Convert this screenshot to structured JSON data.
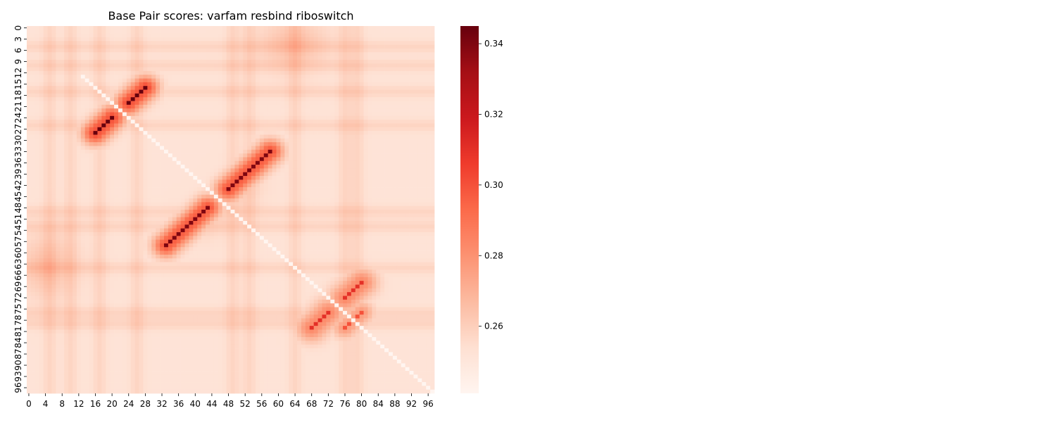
{
  "chart_data": {
    "type": "heatmap",
    "title": "Base Pair scores: varfam resbind riboswitch",
    "xlabel": "",
    "ylabel": "",
    "n": 98,
    "x_tick_labels": [
      "0",
      "4",
      "8",
      "12",
      "16",
      "20",
      "24",
      "28",
      "32",
      "36",
      "40",
      "44",
      "48",
      "52",
      "56",
      "60",
      "64",
      "68",
      "72",
      "76",
      "80",
      "84",
      "88",
      "92",
      "96"
    ],
    "y_tick_labels": [
      "0",
      "3",
      "6",
      "9",
      "12",
      "15",
      "18",
      "21",
      "24",
      "27",
      "30",
      "33",
      "36",
      "39",
      "42",
      "45",
      "48",
      "51",
      "54",
      "57",
      "60",
      "63",
      "66",
      "69",
      "72",
      "75",
      "78",
      "81",
      "84",
      "87",
      "90",
      "93",
      "96"
    ],
    "colormap": "Reds",
    "colormap_stops": [
      "#fff5f0",
      "#fee0d2",
      "#fcbba1",
      "#fc9272",
      "#fb6a4a",
      "#ef3b2c",
      "#cb181d",
      "#a50f15",
      "#67000d"
    ],
    "vmin": 0.241,
    "vmax": 0.345,
    "baseline_value": 0.252,
    "colorbar_ticks": [
      {
        "value": 0.26,
        "label": "0.26"
      },
      {
        "value": 0.28,
        "label": "0.28"
      },
      {
        "value": 0.3,
        "label": "0.30"
      },
      {
        "value": 0.32,
        "label": "0.32"
      },
      {
        "value": 0.34,
        "label": "0.34"
      }
    ],
    "diagonal": {
      "value": 0.241,
      "from": 13,
      "to": 97
    },
    "stems": [
      {
        "i_start": 16,
        "j_start": 28,
        "length": 5,
        "peak": 0.345,
        "spread": 2.2
      },
      {
        "i_start": 33,
        "j_start": 58,
        "length": 11,
        "peak": 0.34,
        "spread": 2.2
      },
      {
        "i_start": 68,
        "j_start": 80,
        "length": 5,
        "peak": 0.31,
        "spread": 2.6
      },
      {
        "i_start": 76,
        "j_start": 80,
        "length": 3,
        "peak": 0.3,
        "spread": 2.0
      }
    ],
    "band_patterns": [
      {
        "centers": [
          5,
          10,
          17,
          26,
          49,
          53,
          64,
          76,
          79
        ],
        "axis": "row",
        "value": 0.006,
        "width": 1.2
      },
      {
        "centers": [
          5,
          10,
          17,
          26,
          49,
          53,
          64,
          76,
          79
        ],
        "axis": "col",
        "value": 0.006,
        "width": 1.2
      }
    ],
    "faint_regions": [
      {
        "i": 3,
        "j": 64,
        "ri": 4,
        "rj": 6,
        "value": 0.007
      },
      {
        "i": 42,
        "j": 52,
        "ri": 4,
        "rj": 4,
        "value": 0.006
      },
      {
        "i": 63,
        "j": 6,
        "ri": 6,
        "rj": 6,
        "value": 0.006
      }
    ]
  }
}
